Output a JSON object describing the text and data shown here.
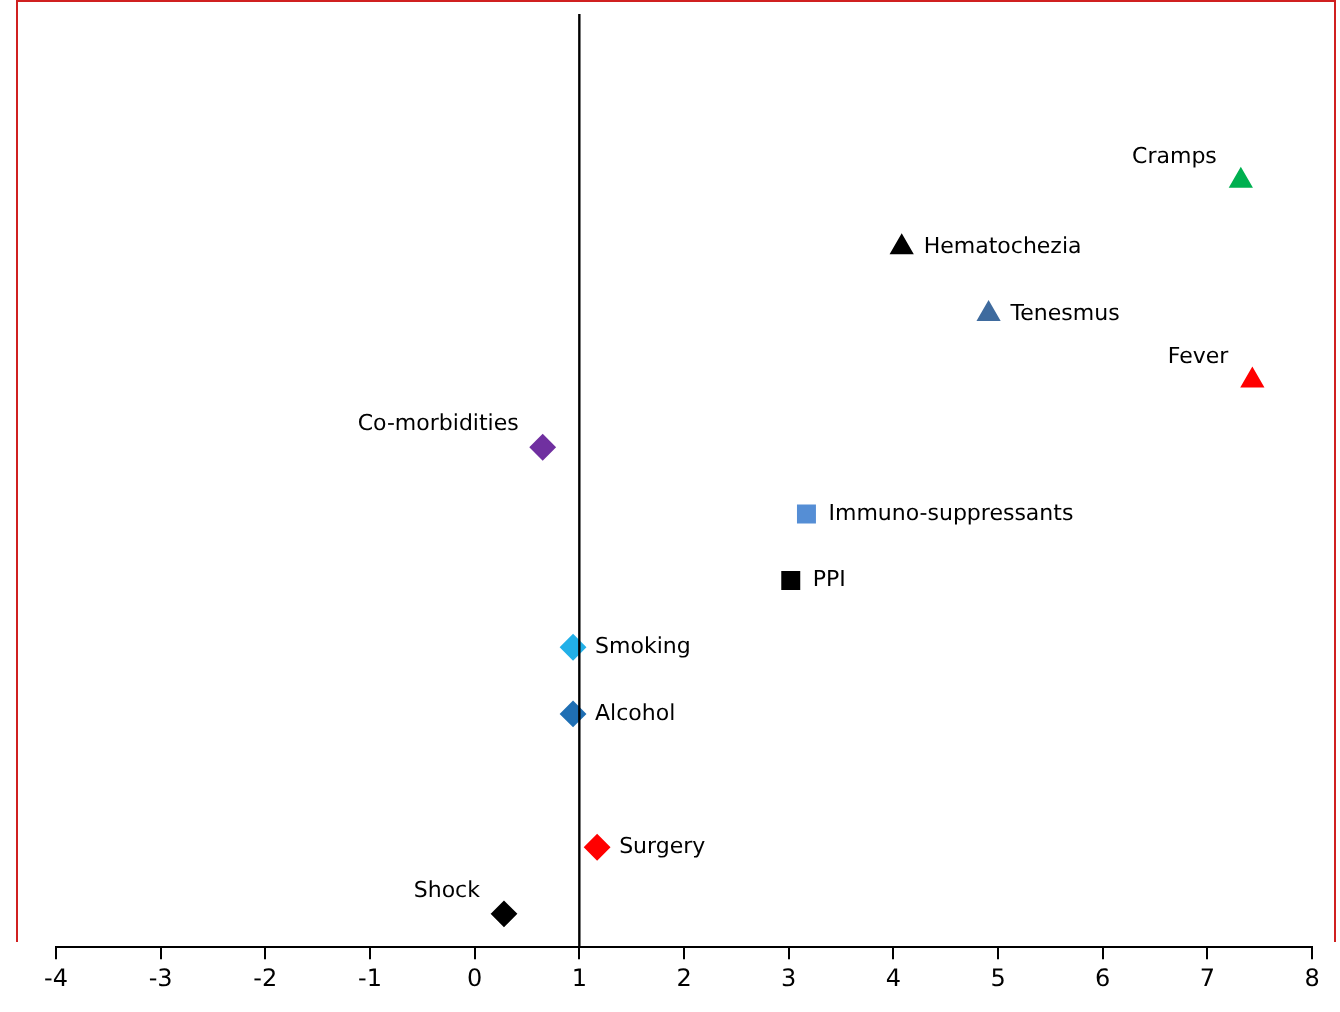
{
  "chart_data": {
    "type": "scatter",
    "orientation": "horizontal",
    "legend": false,
    "grid": false,
    "tick_labels": "x",
    "categories": [
      null,
      null,
      null,
      null,
      null,
      null,
      null,
      null,
      null,
      null,
      null,
      null,
      null,
      null
    ],
    "xlim": [
      -4,
      8
    ],
    "xticks": [
      -4,
      -3,
      -2,
      -1,
      0,
      1,
      2,
      3,
      4,
      5,
      6,
      7,
      8
    ],
    "ref_lines": [
      {
        "axis": "x",
        "value": 1,
        "color": "#000000"
      }
    ],
    "series": [
      {
        "name": "Cramps",
        "color": "#00b050",
        "marker": "triangle",
        "values": [
          null,
          null,
          7.32,
          null,
          null,
          null,
          null,
          null,
          null,
          null,
          null,
          null,
          null,
          null
        ]
      },
      {
        "name": "Hematochezia",
        "color": "#000000",
        "marker": "triangle",
        "values": [
          null,
          null,
          null,
          4.08,
          null,
          null,
          null,
          null,
          null,
          null,
          null,
          null,
          null,
          null
        ]
      },
      {
        "name": "Tenesmus",
        "color": "#3f6b9e",
        "marker": "triangle",
        "values": [
          null,
          null,
          null,
          null,
          4.91,
          null,
          null,
          null,
          null,
          null,
          null,
          null,
          null,
          null
        ]
      },
      {
        "name": "Fever",
        "color": "#ff0000",
        "marker": "triangle",
        "values": [
          null,
          null,
          null,
          null,
          null,
          7.43,
          null,
          null,
          null,
          null,
          null,
          null,
          null,
          null
        ]
      },
      {
        "name": "Co-morbidities",
        "color": "#7030a0",
        "marker": "diamond",
        "values": [
          null,
          null,
          null,
          null,
          null,
          null,
          0.65,
          null,
          null,
          null,
          null,
          null,
          null,
          null
        ]
      },
      {
        "name": "Immuno-suppressants",
        "color": "#558ed5",
        "marker": "square",
        "values": [
          null,
          null,
          null,
          null,
          null,
          null,
          null,
          3.17,
          null,
          null,
          null,
          null,
          null,
          null
        ]
      },
      {
        "name": "PPI",
        "color": "#000000",
        "marker": "square",
        "values": [
          null,
          null,
          null,
          null,
          null,
          null,
          null,
          null,
          3.02,
          null,
          null,
          null,
          null,
          null
        ]
      },
      {
        "name": "Smoking",
        "color": "#22b0e8",
        "marker": "diamond",
        "values": [
          null,
          null,
          null,
          null,
          null,
          null,
          null,
          null,
          null,
          0.94,
          null,
          null,
          null,
          null
        ]
      },
      {
        "name": "Alcohol",
        "color": "#1f6fb4",
        "marker": "diamond",
        "values": [
          null,
          null,
          null,
          null,
          null,
          null,
          null,
          null,
          null,
          null,
          0.94,
          null,
          null,
          null
        ]
      },
      {
        "name": "Surgery",
        "color": "#ff0000",
        "marker": "diamond",
        "values": [
          null,
          null,
          null,
          null,
          null,
          null,
          null,
          null,
          null,
          null,
          null,
          null,
          1.17,
          null
        ]
      },
      {
        "name": "Shock",
        "color": "#000000",
        "marker": "diamond",
        "values": [
          null,
          null,
          null,
          null,
          null,
          null,
          null,
          null,
          null,
          null,
          null,
          null,
          null,
          0.28
        ]
      }
    ]
  }
}
